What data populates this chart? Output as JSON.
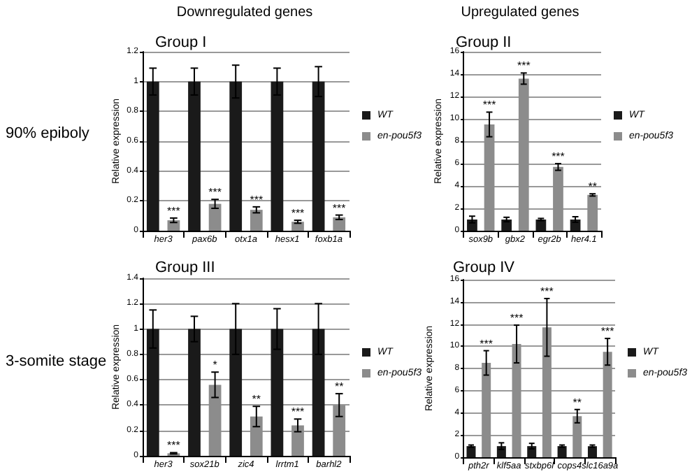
{
  "chart_data": [
    {
      "type": "bar",
      "title": "Group I",
      "ylabel": "Relative expression",
      "categories": [
        "her3",
        "pax6b",
        "otx1a",
        "hesx1",
        "foxb1a"
      ],
      "series": [
        {
          "name": "WT",
          "color": "#1a1a1a",
          "values": [
            1,
            1,
            1,
            1,
            1
          ],
          "errors": [
            0.09,
            0.09,
            0.11,
            0.09,
            0.1
          ]
        },
        {
          "name": "en-pou5f3",
          "color": "#8c8c8c",
          "values": [
            0.07,
            0.18,
            0.14,
            0.06,
            0.09
          ],
          "errors": [
            0.015,
            0.03,
            0.02,
            0.01,
            0.015
          ]
        }
      ],
      "ylim": [
        0,
        1.2
      ],
      "yticks": [
        0,
        0.2,
        0.4,
        0.6,
        0.8,
        1,
        1.2
      ],
      "grid": "y",
      "legend": "right",
      "annotations": [
        "Downregulated genes",
        "90% epiboly",
        {
          "text": "***",
          "x": "her3",
          "y": 0.085
        },
        {
          "text": "***",
          "x": "pax6b",
          "y": 0.21
        },
        {
          "text": "***",
          "x": "otx1a",
          "y": 0.16
        },
        {
          "text": "***",
          "x": "hesx1",
          "y": 0.07
        },
        {
          "text": "***",
          "x": "foxb1a",
          "y": 0.105
        }
      ]
    },
    {
      "type": "bar",
      "title": "Group II",
      "ylabel": "Relative expression",
      "categories": [
        "sox9b",
        "gbx2",
        "egr2b",
        "her4.1"
      ],
      "series": [
        {
          "name": "WT",
          "color": "#1a1a1a",
          "values": [
            1,
            1,
            1,
            1
          ],
          "errors": [
            0.3,
            0.2,
            0.1,
            0.25
          ]
        },
        {
          "name": "en-pou5f3",
          "color": "#8c8c8c",
          "values": [
            9.5,
            13.6,
            5.7,
            3.2
          ],
          "errors": [
            1.1,
            0.5,
            0.3,
            0.1
          ]
        }
      ],
      "ylim": [
        0,
        16
      ],
      "yticks": [
        0,
        2,
        4,
        6,
        8,
        10,
        12,
        14,
        16
      ],
      "grid": "y",
      "legend": "right",
      "annotations": [
        "Upregulated genes",
        {
          "text": "***",
          "x": "sox9b",
          "y": 10.6
        },
        {
          "text": "***",
          "x": "gbx2",
          "y": 14.1
        },
        {
          "text": "***",
          "x": "egr2b",
          "y": 6
        },
        {
          "text": "**",
          "x": "her4.1",
          "y": 3.3
        }
      ]
    },
    {
      "type": "bar",
      "title": "Group III",
      "ylabel": "Relative expression",
      "categories": [
        "her3",
        "sox21b",
        "zic4",
        "lrrtm1",
        "barhl2"
      ],
      "series": [
        {
          "name": "WT",
          "color": "#1a1a1a",
          "values": [
            1,
            1,
            1,
            1,
            1
          ],
          "errors": [
            0.15,
            0.1,
            0.2,
            0.16,
            0.2
          ]
        },
        {
          "name": "en-pou5f3",
          "color": "#8c8c8c",
          "values": [
            0.02,
            0.56,
            0.31,
            0.24,
            0.4
          ],
          "errors": [
            0.005,
            0.1,
            0.08,
            0.05,
            0.09
          ]
        }
      ],
      "ylim": [
        0,
        1.4
      ],
      "yticks": [
        0,
        0.2,
        0.4,
        0.6,
        0.8,
        1,
        1.2,
        1.4
      ],
      "grid": "y",
      "legend": "right",
      "annotations": [
        "3-somite stage",
        {
          "text": "***",
          "x": "her3",
          "y": 0.025
        },
        {
          "text": "*",
          "x": "sox21b",
          "y": 0.66
        },
        {
          "text": "**",
          "x": "zic4",
          "y": 0.39
        },
        {
          "text": "***",
          "x": "lrrtm1",
          "y": 0.29
        },
        {
          "text": "**",
          "x": "barhl2",
          "y": 0.49
        }
      ]
    },
    {
      "type": "bar",
      "title": "Group IV",
      "ylabel": "Relative expression",
      "categories": [
        "pth2r",
        "klf5aa",
        "stxbp6l",
        "cops4",
        "slc16a9a"
      ],
      "series": [
        {
          "name": "WT",
          "color": "#1a1a1a",
          "values": [
            1,
            1,
            1,
            1,
            1
          ],
          "errors": [
            0.1,
            0.3,
            0.25,
            0.1,
            0.1
          ]
        },
        {
          "name": "en-pou5f3",
          "color": "#8c8c8c",
          "values": [
            8.5,
            10.2,
            11.7,
            3.7,
            9.5
          ],
          "errors": [
            1.1,
            1.7,
            2.6,
            0.6,
            1.2
          ]
        }
      ],
      "ylim": [
        0,
        16
      ],
      "yticks": [
        0,
        2,
        4,
        6,
        8,
        10,
        12,
        14,
        16
      ],
      "grid": "y",
      "legend": "right",
      "annotations": [
        {
          "text": "***",
          "x": "pth2r",
          "y": 9.6
        },
        {
          "text": "***",
          "x": "klf5aa",
          "y": 11.9
        },
        {
          "text": "***",
          "x": "stxbp6l",
          "y": 14.3
        },
        {
          "text": "**",
          "x": "cops4",
          "y": 4.3
        },
        {
          "text": "***",
          "x": "slc16a9a",
          "y": 10.7
        }
      ]
    }
  ]
}
